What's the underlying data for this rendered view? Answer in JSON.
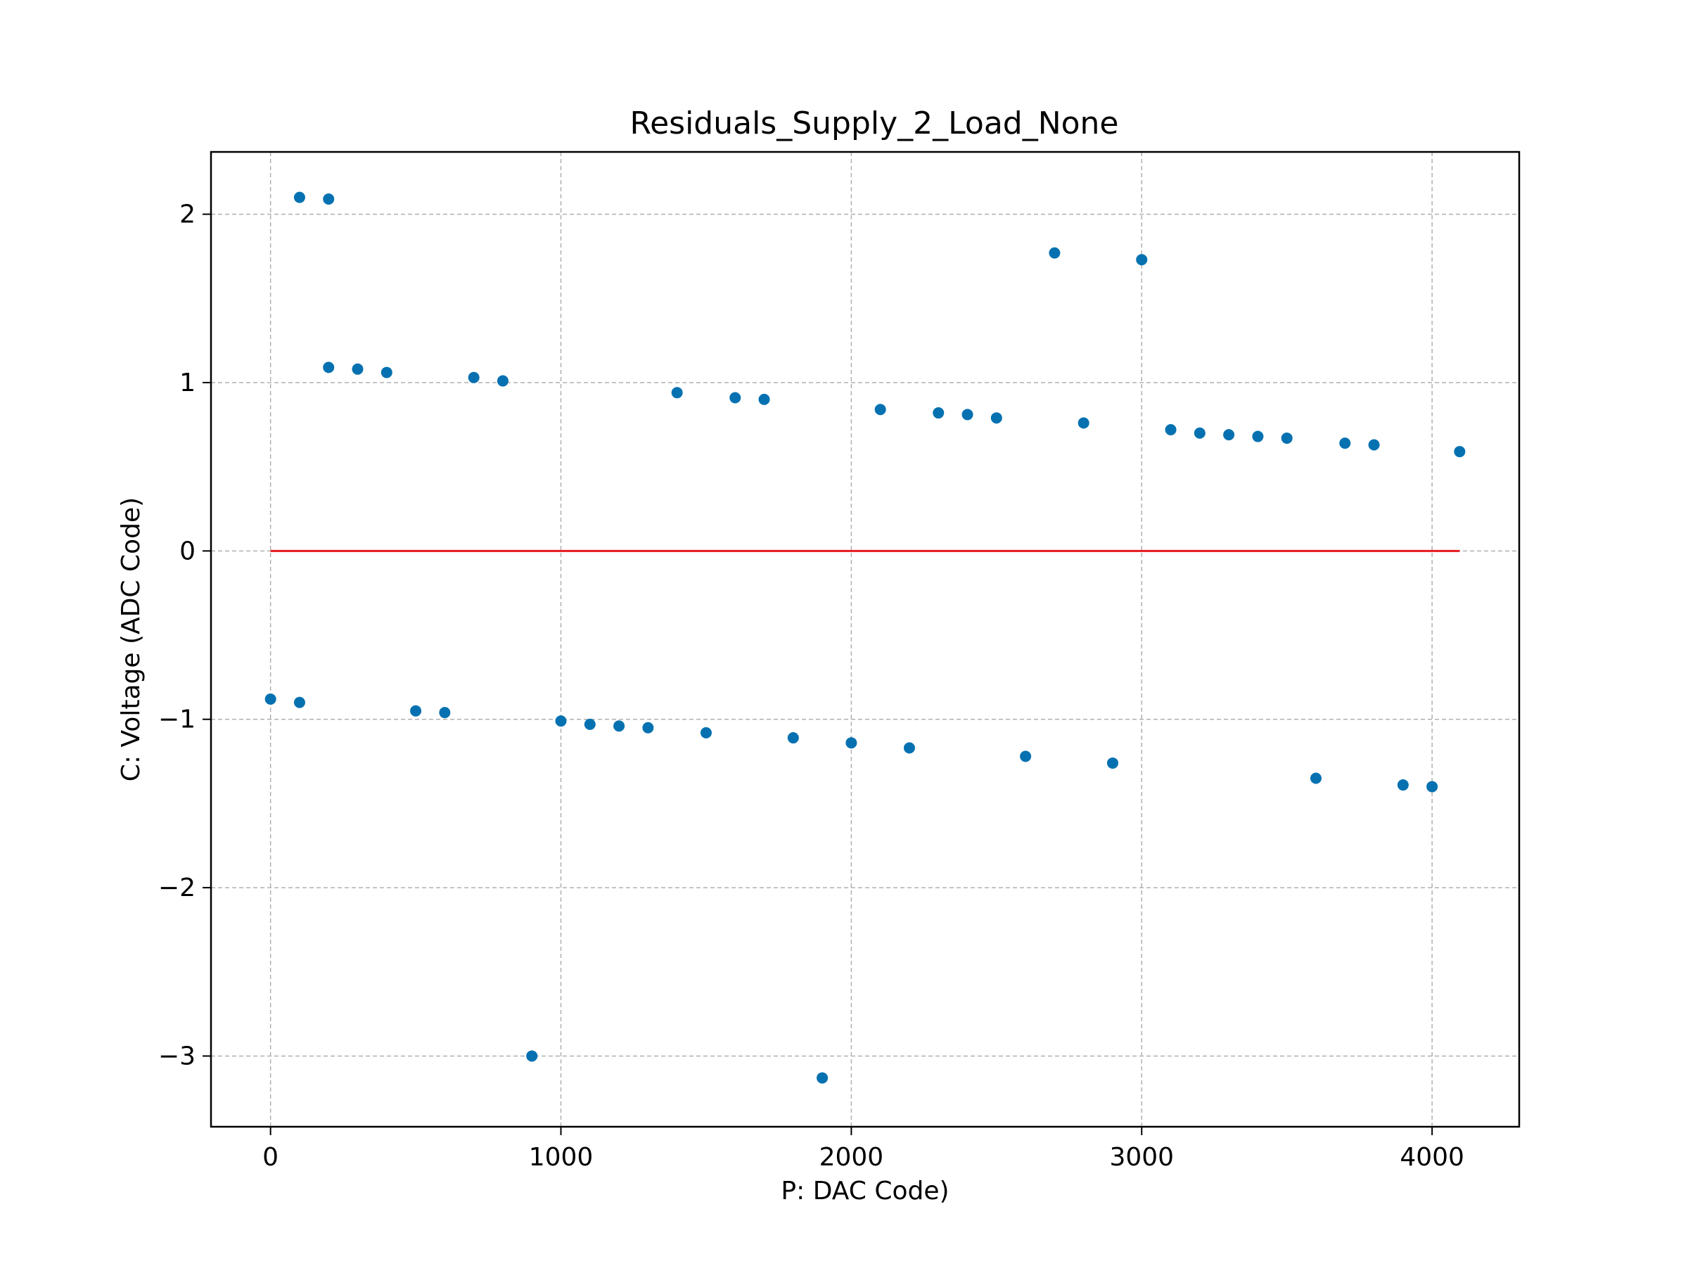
{
  "chart_data": {
    "type": "scatter",
    "title": "Residuals_Supply_2_Load_None",
    "xlabel": "P: DAC Code)",
    "ylabel": "C: Voltage (ADC Code)",
    "xlim": [
      -205,
      4300
    ],
    "ylim": [
      -3.42,
      2.37
    ],
    "xticks": [
      0,
      1000,
      2000,
      3000,
      4000
    ],
    "yticks": [
      2,
      1,
      0,
      -1,
      -2,
      -3
    ],
    "ytick_labels": [
      "2",
      "1",
      "0",
      "−1",
      "−2",
      "−3"
    ],
    "grid": true,
    "colors": {
      "points": "#0571b0",
      "zero_line": "#e41a1c",
      "grid": "#b0b0b0"
    },
    "zero_line": {
      "x": [
        0,
        4095
      ],
      "y": 0
    },
    "series": [
      {
        "points": [
          [
            0,
            -0.88
          ],
          [
            100,
            2.1
          ],
          [
            100,
            -0.9
          ],
          [
            200,
            2.09
          ],
          [
            200,
            1.09
          ],
          [
            300,
            1.08
          ],
          [
            400,
            1.06
          ],
          [
            500,
            -0.95
          ],
          [
            600,
            -0.96
          ],
          [
            700,
            1.03
          ],
          [
            800,
            1.01
          ],
          [
            900,
            -3.0
          ],
          [
            1000,
            -1.01
          ],
          [
            1100,
            -1.03
          ],
          [
            1200,
            -1.04
          ],
          [
            1300,
            -1.05
          ],
          [
            1400,
            0.94
          ],
          [
            1500,
            -1.08
          ],
          [
            1600,
            0.91
          ],
          [
            1700,
            0.9
          ],
          [
            1800,
            -1.11
          ],
          [
            1900,
            -3.13
          ],
          [
            2000,
            -1.14
          ],
          [
            2100,
            0.84
          ],
          [
            2200,
            -1.17
          ],
          [
            2300,
            0.82
          ],
          [
            2400,
            0.81
          ],
          [
            2500,
            0.79
          ],
          [
            2600,
            -1.22
          ],
          [
            2700,
            1.77
          ],
          [
            2800,
            0.76
          ],
          [
            2900,
            -1.26
          ],
          [
            3000,
            1.73
          ],
          [
            3100,
            0.72
          ],
          [
            3200,
            0.7
          ],
          [
            3300,
            0.69
          ],
          [
            3400,
            0.68
          ],
          [
            3500,
            0.67
          ],
          [
            3600,
            -1.35
          ],
          [
            3700,
            0.64
          ],
          [
            3800,
            0.63
          ],
          [
            3900,
            -1.39
          ],
          [
            4000,
            -1.4
          ],
          [
            4095,
            0.59
          ]
        ]
      }
    ]
  }
}
